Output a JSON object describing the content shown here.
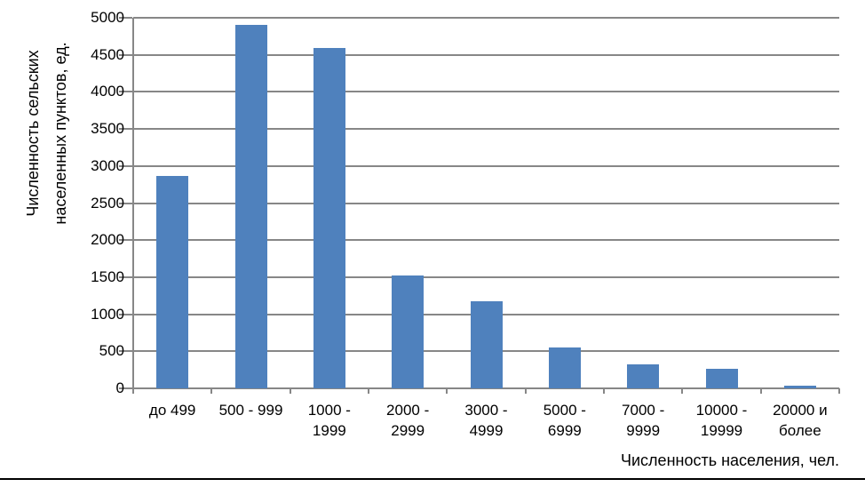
{
  "chart_data": {
    "type": "bar",
    "title": "",
    "xlabel": "Численность населения, чел.",
    "ylabel": "Численность сельских населенных пунктов, ед.",
    "ylabel_lines": [
      "Численность сельских",
      "населенных пунктов, ед."
    ],
    "categories": [
      "до 499",
      "500 - 999",
      "1000 - 1999",
      "2000 - 2999",
      "3000 - 4999",
      "5000 - 6999",
      "7000 - 9999",
      "10000 - 19999",
      "20000 и более"
    ],
    "category_label_lines": [
      [
        "до 499"
      ],
      [
        "500 - 999"
      ],
      [
        "1000 -",
        "1999"
      ],
      [
        "2000 -",
        "2999"
      ],
      [
        "3000 -",
        "4999"
      ],
      [
        "5000 -",
        "6999"
      ],
      [
        "7000 -",
        "9999"
      ],
      [
        "10000 -",
        "19999"
      ],
      [
        "20000 и",
        "более"
      ]
    ],
    "values": [
      2870,
      4900,
      4590,
      1520,
      1170,
      550,
      320,
      260,
      40
    ],
    "ylim": [
      0,
      5000
    ],
    "yticks": [
      0,
      500,
      1000,
      1500,
      2000,
      2500,
      3000,
      3500,
      4000,
      4500,
      5000
    ],
    "grid": true,
    "legend": "none",
    "bar_color": "#4F81BD",
    "grid_color": "#878787",
    "axis_color": "#878787",
    "text_color": "#000000",
    "background_color": "#FFFFFF"
  }
}
